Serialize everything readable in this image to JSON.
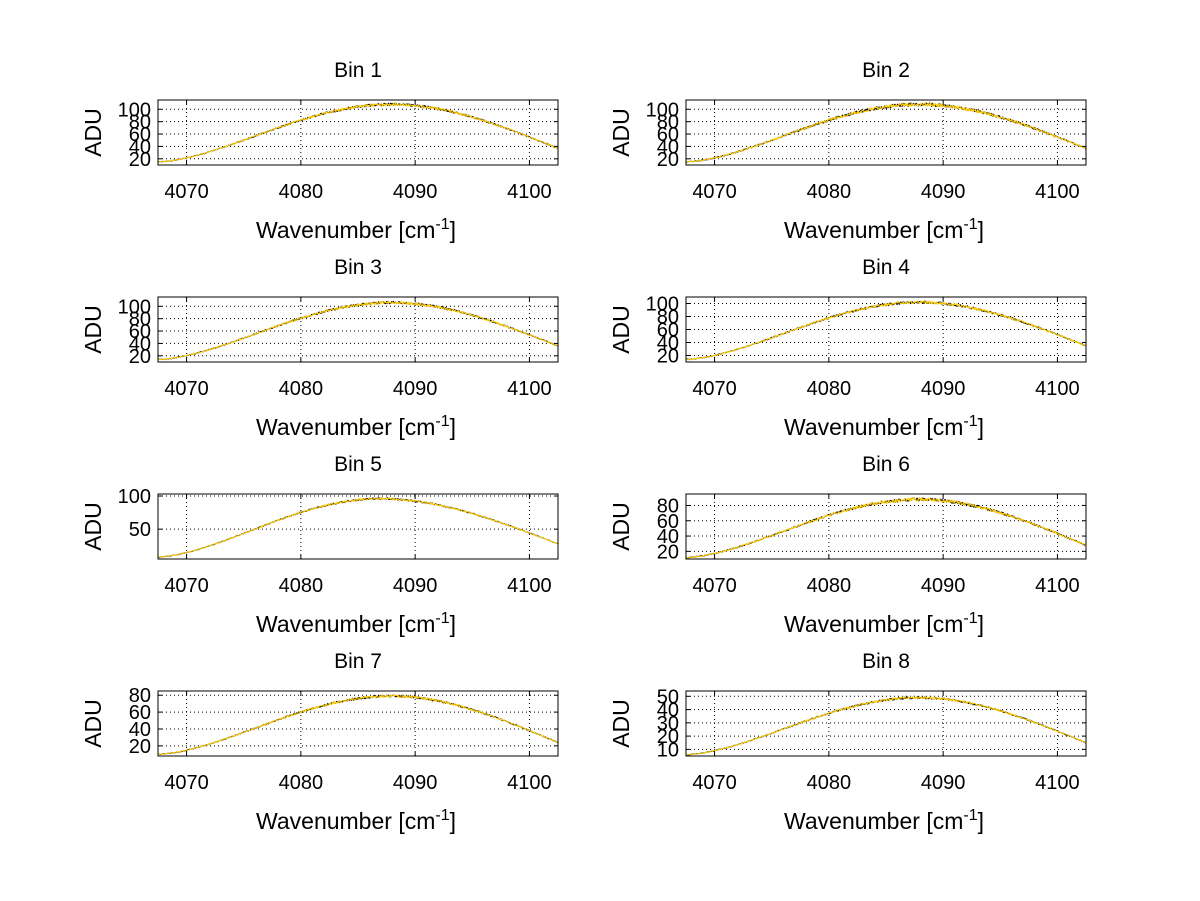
{
  "chart_data": [
    {
      "type": "line",
      "title": "Bin 1",
      "xlabel": "Wavenumber [cm",
      "xlabel_sup": "-1",
      "xlabel_end": "]",
      "ylabel": "ADU",
      "xlim": [
        4067.5,
        4102.5
      ],
      "ylim": [
        10,
        115
      ],
      "xticks": [
        4070,
        4080,
        4090,
        4100
      ],
      "yticks": [
        20,
        40,
        60,
        80,
        100
      ],
      "grid": true,
      "peak_x": 4088,
      "peak_y": 108,
      "y_left": 15,
      "y_right": 37,
      "noise": 3,
      "series": [
        {
          "color": "#000000"
        },
        {
          "color": "#ffcc00"
        }
      ]
    },
    {
      "type": "line",
      "title": "Bin 2",
      "xlabel": "Wavenumber [cm",
      "xlabel_sup": "-1",
      "xlabel_end": "]",
      "ylabel": "ADU",
      "xlim": [
        4067.5,
        4102.5
      ],
      "ylim": [
        10,
        115
      ],
      "xticks": [
        4070,
        4080,
        4090,
        4100
      ],
      "yticks": [
        20,
        40,
        60,
        80,
        100
      ],
      "grid": true,
      "peak_x": 4088,
      "peak_y": 108,
      "y_left": 15,
      "y_right": 37,
      "noise": 4,
      "series": [
        {
          "color": "#000000"
        },
        {
          "color": "#ffcc00"
        }
      ]
    },
    {
      "type": "line",
      "title": "Bin 3",
      "xlabel": "Wavenumber [cm",
      "xlabel_sup": "-1",
      "xlabel_end": "]",
      "ylabel": "ADU",
      "xlim": [
        4067.5,
        4102.5
      ],
      "ylim": [
        10,
        115
      ],
      "xticks": [
        4070,
        4080,
        4090,
        4100
      ],
      "yticks": [
        20,
        40,
        60,
        80,
        100
      ],
      "grid": true,
      "peak_x": 4088,
      "peak_y": 106,
      "y_left": 14,
      "y_right": 36,
      "noise": 3,
      "series": [
        {
          "color": "#000000"
        },
        {
          "color": "#ffcc00"
        }
      ]
    },
    {
      "type": "line",
      "title": "Bin 4",
      "xlabel": "Wavenumber [cm",
      "xlabel_sup": "-1",
      "xlabel_end": "]",
      "ylabel": "ADU",
      "xlim": [
        4067.5,
        4102.5
      ],
      "ylim": [
        10,
        110
      ],
      "xticks": [
        4070,
        4080,
        4090,
        4100
      ],
      "yticks": [
        20,
        40,
        60,
        80,
        100
      ],
      "grid": true,
      "peak_x": 4088,
      "peak_y": 102,
      "y_left": 14,
      "y_right": 35,
      "noise": 3,
      "series": [
        {
          "color": "#000000"
        },
        {
          "color": "#ffcc00"
        }
      ]
    },
    {
      "type": "line",
      "title": "Bin 5",
      "xlabel": "Wavenumber [cm",
      "xlabel_sup": "-1",
      "xlabel_end": "]",
      "ylabel": "ADU",
      "xlim": [
        4067.5,
        4102.5
      ],
      "ylim": [
        5,
        103
      ],
      "xticks": [
        4070,
        4080,
        4090,
        4100
      ],
      "yticks": [
        50,
        100
      ],
      "grid": true,
      "peak_x": 4087,
      "peak_y": 96,
      "y_left": 8,
      "y_right": 28,
      "noise": 2,
      "series": [
        {
          "color": "#000000"
        },
        {
          "color": "#ffcc00"
        }
      ]
    },
    {
      "type": "line",
      "title": "Bin 6",
      "xlabel": "Wavenumber [cm",
      "xlabel_sup": "-1",
      "xlabel_end": "]",
      "ylabel": "ADU",
      "xlim": [
        4067.5,
        4102.5
      ],
      "ylim": [
        10,
        95
      ],
      "xticks": [
        4070,
        4080,
        4090,
        4100
      ],
      "yticks": [
        20,
        40,
        60,
        80
      ],
      "grid": true,
      "peak_x": 4088,
      "peak_y": 88,
      "y_left": 12,
      "y_right": 28,
      "noise": 3,
      "series": [
        {
          "color": "#000000"
        },
        {
          "color": "#ffcc00"
        }
      ]
    },
    {
      "type": "line",
      "title": "Bin 7",
      "xlabel": "Wavenumber [cm",
      "xlabel_sup": "-1",
      "xlabel_end": "]",
      "ylabel": "ADU",
      "xlim": [
        4067.5,
        4102.5
      ],
      "ylim": [
        8,
        85
      ],
      "xticks": [
        4070,
        4080,
        4090,
        4100
      ],
      "yticks": [
        20,
        40,
        60,
        80
      ],
      "grid": true,
      "peak_x": 4088,
      "peak_y": 79,
      "y_left": 10,
      "y_right": 24,
      "noise": 2,
      "series": [
        {
          "color": "#000000"
        },
        {
          "color": "#ffcc00"
        }
      ]
    },
    {
      "type": "line",
      "title": "Bin 8",
      "xlabel": "Wavenumber [cm",
      "xlabel_sup": "-1",
      "xlabel_end": "]",
      "ylabel": "ADU",
      "xlim": [
        4067.5,
        4102.5
      ],
      "ylim": [
        5,
        54
      ],
      "xticks": [
        4070,
        4080,
        4090,
        4100
      ],
      "yticks": [
        10,
        20,
        30,
        40,
        50
      ],
      "grid": true,
      "peak_x": 4088,
      "peak_y": 49,
      "y_left": 6,
      "y_right": 15,
      "noise": 1.2,
      "series": [
        {
          "color": "#000000"
        },
        {
          "color": "#ffcc00"
        }
      ]
    }
  ]
}
